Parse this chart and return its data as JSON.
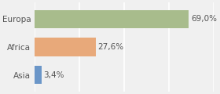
{
  "categories": [
    "Asia",
    "Africa",
    "Europa"
  ],
  "values": [
    3.4,
    27.6,
    69.0
  ],
  "labels": [
    "3,4%",
    "27,6%",
    "69,0%"
  ],
  "bar_colors": [
    "#6b96c8",
    "#e8a97a",
    "#a8bc8c"
  ],
  "background_color": "#f0f0f0",
  "xlim": [
    0,
    80
  ],
  "bar_height": 0.65,
  "label_fontsize": 7.5,
  "category_fontsize": 7.5
}
